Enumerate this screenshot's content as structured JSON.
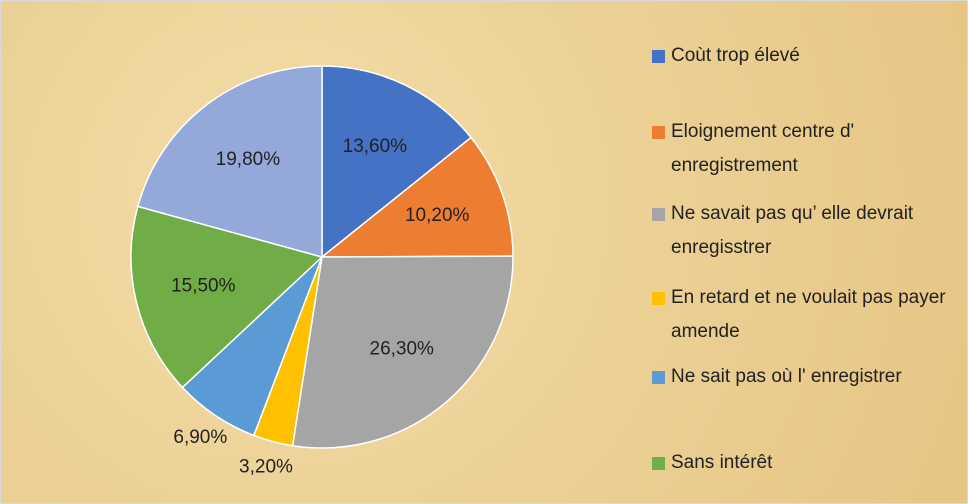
{
  "chart_data": {
    "type": "pie",
    "categories": [
      "Coùt trop élevé",
      "Eloignement centre d' enregistrement",
      "Ne savait pas qu’ elle devrait enregisstrer",
      "En retard et ne voulait pas payer amende",
      "Ne sait pas où l' enregistrer",
      "Sans intérêt",
      null
    ],
    "values": [
      13.6,
      10.2,
      26.3,
      3.2,
      6.9,
      15.5,
      19.8
    ],
    "value_labels": [
      "13,60%",
      "10,20%",
      "26,30%",
      "3,20%",
      "6,90%",
      "15,50%",
      "19,80%"
    ],
    "colors": [
      "#4472c4",
      "#ed7d31",
      "#a5a5a5",
      "#ffc000",
      "#5b9bd5",
      "#70ad47",
      "#94a8da"
    ],
    "legend": "right"
  }
}
